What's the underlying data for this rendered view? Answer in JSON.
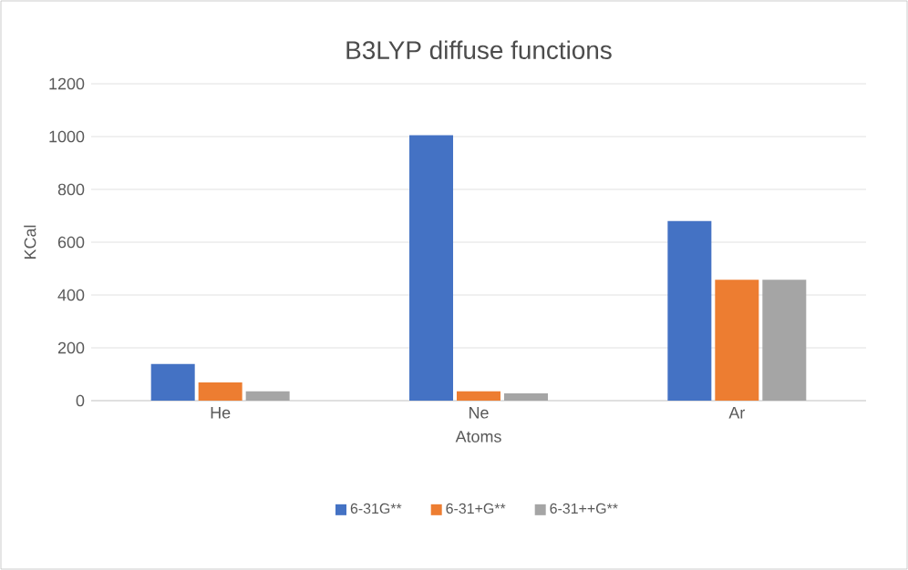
{
  "chart_data": {
    "type": "bar",
    "title": "B3LYP diffuse functions",
    "xlabel": "Atoms",
    "ylabel": "KCal",
    "categories": [
      "He",
      "Ne",
      "Ar"
    ],
    "series": [
      {
        "name": "6-31G**",
        "color": "#4472c4",
        "values": [
          139,
          1005,
          680
        ]
      },
      {
        "name": "6-31+G**",
        "color": "#ed7d31",
        "values": [
          69,
          35,
          458
        ]
      },
      {
        "name": "6-31++G**",
        "color": "#a5a5a5",
        "values": [
          35,
          28,
          458
        ]
      }
    ],
    "ylim": [
      0,
      1200
    ],
    "yticks": [
      0,
      200,
      400,
      600,
      800,
      1000,
      1200
    ],
    "grid": "y",
    "legend": "bottom"
  }
}
